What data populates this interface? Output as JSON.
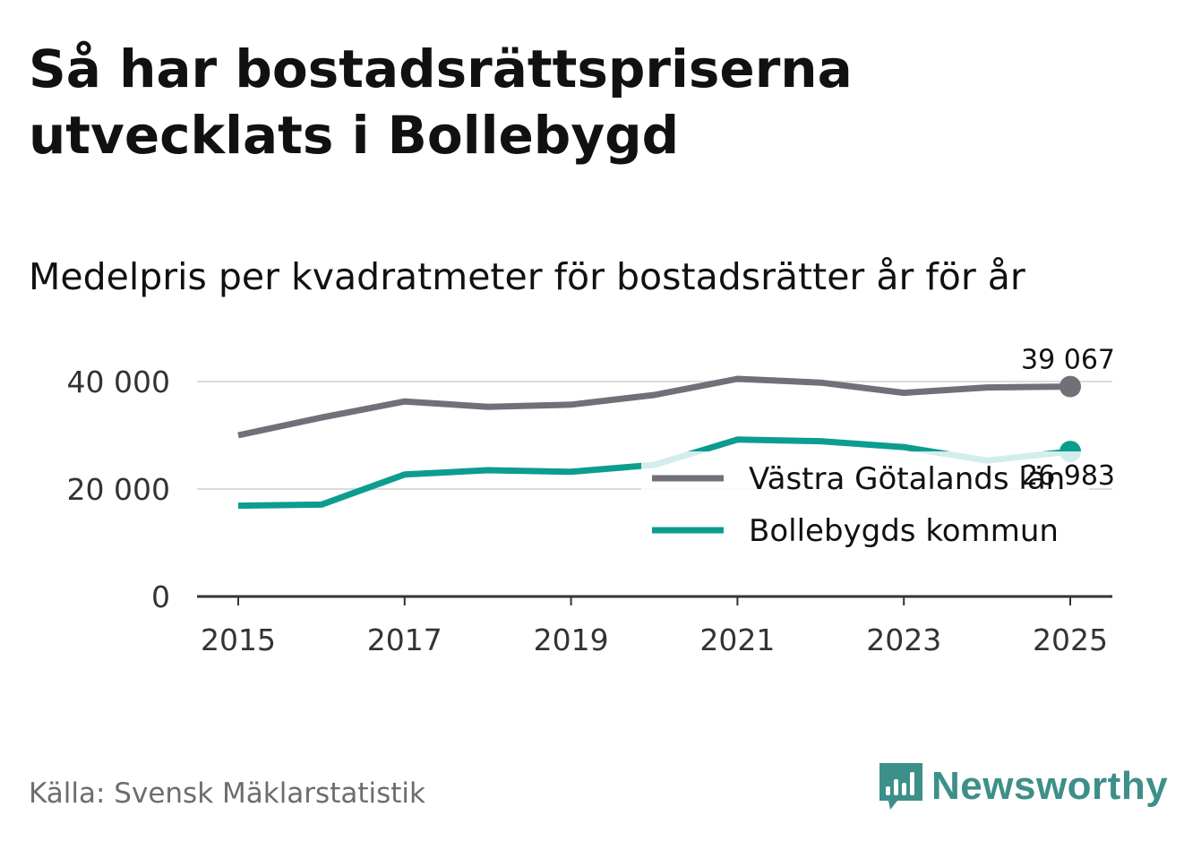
{
  "header": {
    "title": "Så har bostadsrättspriserna utvecklats i Bollebygd",
    "subtitle": "Medelpris per kvadratmeter för bostadsrätter år för år"
  },
  "footer": {
    "source": "Källa: Svensk Mäklarstatistik",
    "brand": "Newsworthy"
  },
  "colors": {
    "gray_series": "#717078",
    "teal_series": "#0c9d8f",
    "grid": "#dcdcdc",
    "axis": "#333333"
  },
  "chart_data": {
    "type": "line",
    "title": "Så har bostadsrättspriserna utvecklats i Bollebygd",
    "subtitle": "Medelpris per kvadratmeter för bostadsrätter år för år",
    "x": [
      2015,
      2016,
      2017,
      2018,
      2019,
      2020,
      2021,
      2022,
      2023,
      2024,
      2025
    ],
    "x_ticks": [
      2015,
      2017,
      2019,
      2021,
      2023,
      2025
    ],
    "x_tick_labels": [
      "2015",
      "2017",
      "2019",
      "2021",
      "2023",
      "2025"
    ],
    "y_ticks": [
      0,
      20000,
      40000
    ],
    "y_tick_labels": [
      "0",
      "20 000",
      "40 000"
    ],
    "ylim": [
      0,
      40000
    ],
    "xlabel": "",
    "ylabel": "",
    "grid": true,
    "legend_position": "bottom-right",
    "series": [
      {
        "name": "Västra Götalands län",
        "color": "#717078",
        "values": [
          30000,
          33300,
          36300,
          35300,
          35700,
          37500,
          40500,
          39800,
          37900,
          38900,
          39067
        ],
        "end_label": "39 067"
      },
      {
        "name": "Bollebygds kommun",
        "color": "#0c9d8f",
        "values": [
          16900,
          17100,
          22700,
          23500,
          23200,
          24500,
          29200,
          28900,
          27800,
          25300,
          26983
        ],
        "end_label": "26 983"
      }
    ]
  }
}
